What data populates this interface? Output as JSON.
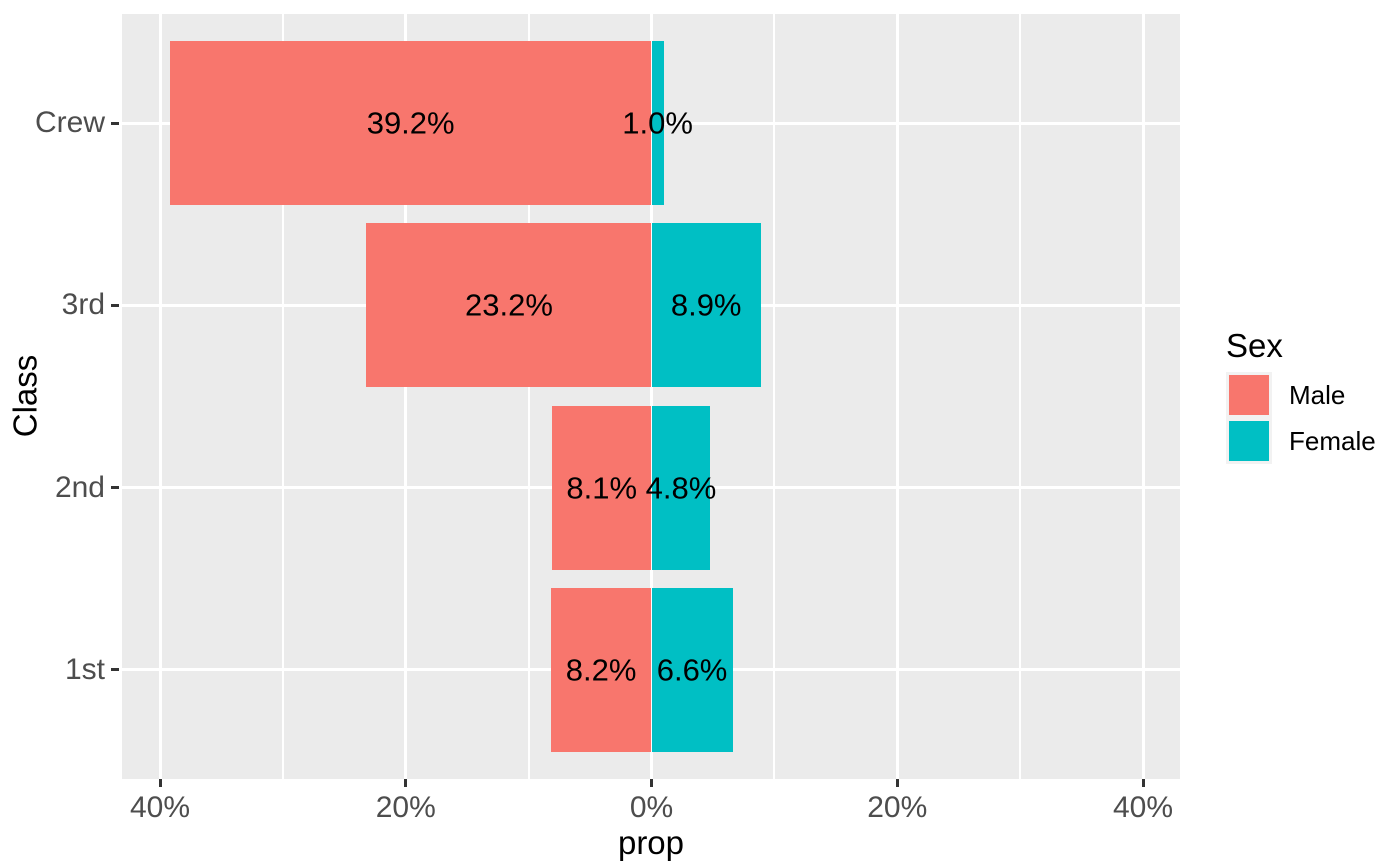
{
  "chart_data": {
    "type": "bar",
    "variant": "diverging-horizontal",
    "title": "",
    "xlabel": "prop",
    "ylabel": "Class",
    "categories": [
      "Crew",
      "3rd",
      "2nd",
      "1st"
    ],
    "series": [
      {
        "name": "Male",
        "color": "#F8766D",
        "side": "left",
        "values_pct": [
          39.2,
          23.2,
          8.1,
          8.2
        ],
        "labels": [
          "39.2%",
          "23.2%",
          "8.1%",
          "8.2%"
        ]
      },
      {
        "name": "Female",
        "color": "#00BFC4",
        "side": "right",
        "values_pct": [
          1.0,
          8.9,
          4.8,
          6.6
        ],
        "labels": [
          "1.0%",
          "8.9%",
          "4.8%",
          "6.6%"
        ]
      }
    ],
    "x_axis": {
      "major_ticks_pct": [
        -40,
        -20,
        0,
        20,
        40
      ],
      "tick_labels": [
        "40%",
        "20%",
        "0%",
        "20%",
        "40%"
      ],
      "minor_gridlines_pct": [
        -30,
        -10,
        10,
        30
      ],
      "range_pct": [
        -43.1,
        43.1
      ]
    },
    "y_axis": {
      "tick_labels": [
        "Crew",
        "3rd",
        "2nd",
        "1st"
      ]
    },
    "legend": {
      "title": "Sex",
      "position": "right",
      "entries": [
        {
          "label": "Male",
          "color": "#F8766D"
        },
        {
          "label": "Female",
          "color": "#00BFC4"
        }
      ]
    },
    "grid": true
  },
  "style": {
    "page_bg": "#FFFFFF",
    "panel_bg": "#EBEBEB",
    "grid_color": "#FFFFFF",
    "tick_mark_color": "#333333",
    "axis_text_color": "#4D4D4D",
    "axis_title_color": "#000000",
    "bar_label_color": "#000000",
    "legend_key_bg": "#F2F2F2"
  }
}
